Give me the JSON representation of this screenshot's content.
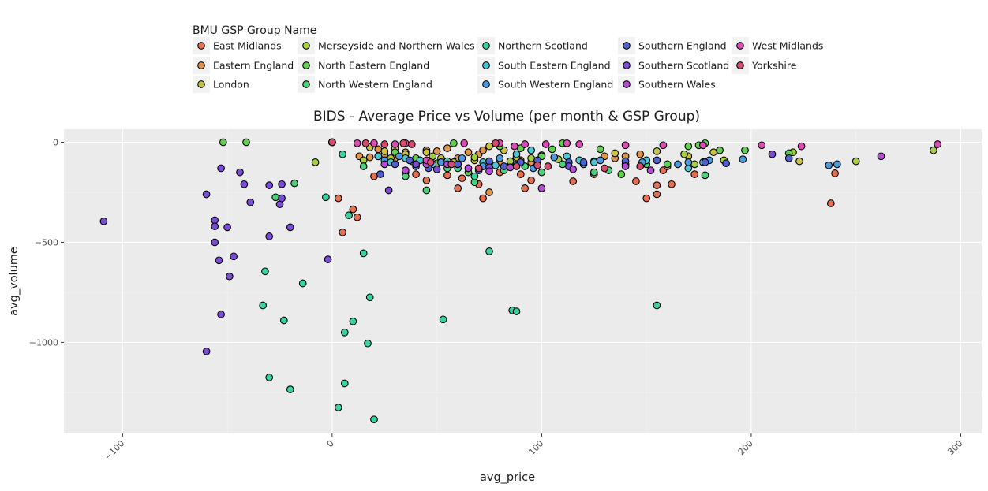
{
  "chart_data": {
    "type": "scatter",
    "title": "BIDS - Average Price vs Volume (per month & GSP Group)",
    "xlabel": "avg_price",
    "ylabel": "avg_volume",
    "xlim": [
      -128,
      310
    ],
    "ylim": [
      -1455,
      65
    ],
    "x_ticks": [
      -100,
      0,
      100,
      200,
      300
    ],
    "x_tick_labels": [
      "−100",
      "0",
      "100",
      "200",
      "300"
    ],
    "y_ticks": [
      0,
      -500,
      -1000
    ],
    "y_tick_labels": [
      "0",
      "−500",
      "−1000"
    ],
    "grid": true,
    "legend": {
      "title": "BMU GSP Group Name",
      "placement": "top"
    },
    "series": [
      {
        "name": "East Midlands",
        "color": "#E76F51",
        "points": [
          [
            3,
            -280
          ],
          [
            5,
            -450
          ],
          [
            10,
            -335
          ],
          [
            12,
            -375
          ],
          [
            20,
            -170
          ],
          [
            35,
            -150
          ],
          [
            40,
            -160
          ],
          [
            45,
            -190
          ],
          [
            55,
            -165
          ],
          [
            60,
            -230
          ],
          [
            62,
            -180
          ],
          [
            70,
            -210
          ],
          [
            72,
            -280
          ],
          [
            80,
            -150
          ],
          [
            90,
            -160
          ],
          [
            92,
            -230
          ],
          [
            95,
            -190
          ],
          [
            115,
            -195
          ],
          [
            125,
            -160
          ],
          [
            145,
            -195
          ],
          [
            150,
            -280
          ],
          [
            155,
            -260
          ],
          [
            155,
            -215
          ],
          [
            158,
            -140
          ],
          [
            162,
            -210
          ],
          [
            173,
            -160
          ],
          [
            240,
            -155
          ],
          [
            238,
            -305
          ]
        ]
      },
      {
        "name": "Eastern England",
        "color": "#E0954B",
        "points": [
          [
            13,
            -70
          ],
          [
            18,
            -75
          ],
          [
            22,
            -35
          ],
          [
            25,
            -60
          ],
          [
            30,
            -80
          ],
          [
            35,
            -50
          ],
          [
            40,
            -110
          ],
          [
            45,
            -40
          ],
          [
            50,
            -45
          ],
          [
            55,
            -30
          ],
          [
            60,
            -80
          ],
          [
            65,
            -50
          ],
          [
            70,
            -60
          ],
          [
            72,
            -40
          ],
          [
            75,
            -250
          ],
          [
            80,
            -100
          ],
          [
            85,
            -120
          ],
          [
            90,
            -90
          ],
          [
            95,
            -100
          ],
          [
            130,
            -70
          ],
          [
            135,
            -80
          ],
          [
            140,
            -70
          ],
          [
            147,
            -60
          ],
          [
            160,
            -120
          ]
        ]
      },
      {
        "name": "London",
        "color": "#C9C342",
        "points": [
          [
            18,
            -25
          ],
          [
            25,
            -45
          ],
          [
            30,
            -30
          ],
          [
            35,
            -60
          ],
          [
            45,
            -50
          ],
          [
            52,
            -80
          ],
          [
            60,
            -95
          ],
          [
            68,
            -90
          ],
          [
            75,
            -20
          ],
          [
            82,
            -40
          ],
          [
            88,
            -75
          ],
          [
            98,
            -110
          ],
          [
            135,
            -55
          ],
          [
            155,
            -45
          ],
          [
            170,
            -70
          ],
          [
            182,
            -50
          ],
          [
            223,
            -95
          ]
        ]
      },
      {
        "name": "Merseyside and Northern Wales",
        "color": "#A6CF3F",
        "points": [
          [
            -8,
            -100
          ],
          [
            15,
            -90
          ],
          [
            28,
            -80
          ],
          [
            38,
            -95
          ],
          [
            48,
            -70
          ],
          [
            58,
            -100
          ],
          [
            68,
            -75
          ],
          [
            85,
            -95
          ],
          [
            95,
            -80
          ],
          [
            100,
            -65
          ],
          [
            108,
            -85
          ],
          [
            125,
            -95
          ],
          [
            140,
            -110
          ],
          [
            168,
            -60
          ],
          [
            173,
            -110
          ],
          [
            187,
            -90
          ],
          [
            220,
            -50
          ],
          [
            250,
            -95
          ],
          [
            287,
            -40
          ]
        ]
      },
      {
        "name": "North Eastern England",
        "color": "#61D04F",
        "points": [
          [
            -52,
            0
          ],
          [
            -41,
            0
          ],
          [
            22,
            -70
          ],
          [
            30,
            -50
          ],
          [
            40,
            -80
          ],
          [
            50,
            -105
          ],
          [
            58,
            -5
          ],
          [
            65,
            -150
          ],
          [
            72,
            -120
          ],
          [
            80,
            -20
          ],
          [
            90,
            -30
          ],
          [
            100,
            -70
          ],
          [
            105,
            -35
          ],
          [
            110,
            -5
          ],
          [
            128,
            -35
          ],
          [
            138,
            -160
          ],
          [
            160,
            -110
          ],
          [
            170,
            -20
          ],
          [
            175,
            -15
          ],
          [
            178,
            -5
          ],
          [
            185,
            -40
          ],
          [
            197,
            -40
          ],
          [
            218,
            -55
          ]
        ]
      },
      {
        "name": "North Western England",
        "color": "#4BD07A",
        "points": [
          [
            -27,
            -275
          ],
          [
            -18,
            -205
          ],
          [
            15,
            -120
          ],
          [
            35,
            -170
          ],
          [
            45,
            -240
          ],
          [
            55,
            -130
          ],
          [
            68,
            -200
          ],
          [
            82,
            -140
          ],
          [
            92,
            -120
          ],
          [
            100,
            -150
          ],
          [
            110,
            -110
          ],
          [
            125,
            -150
          ],
          [
            132,
            -140
          ],
          [
            150,
            -110
          ],
          [
            178,
            -165
          ]
        ]
      },
      {
        "name": "Northern Scotland",
        "color": "#39D49C",
        "points": [
          [
            -32,
            -645
          ],
          [
            -33,
            -815
          ],
          [
            -30,
            -1175
          ],
          [
            -23,
            -890
          ],
          [
            -20,
            -1235
          ],
          [
            -14,
            -705
          ],
          [
            -3,
            -275
          ],
          [
            3,
            -1325
          ],
          [
            5,
            -60
          ],
          [
            6,
            -950
          ],
          [
            6,
            -1205
          ],
          [
            8,
            -365
          ],
          [
            10,
            -895
          ],
          [
            15,
            -555
          ],
          [
            17,
            -1005
          ],
          [
            18,
            -775
          ],
          [
            20,
            -1385
          ],
          [
            53,
            -885
          ],
          [
            75,
            -545
          ],
          [
            86,
            -840
          ],
          [
            88,
            -845
          ],
          [
            155,
            -815
          ],
          [
            60,
            -130
          ],
          [
            68,
            -170
          ]
        ]
      },
      {
        "name": "South Eastern England",
        "color": "#4CC8D4",
        "points": [
          [
            22,
            -70
          ],
          [
            28,
            -100
          ],
          [
            35,
            -80
          ],
          [
            42,
            -90
          ],
          [
            48,
            -110
          ],
          [
            55,
            -95
          ],
          [
            65,
            -130
          ],
          [
            72,
            -100
          ],
          [
            78,
            -115
          ],
          [
            88,
            -60
          ],
          [
            95,
            -40
          ],
          [
            112,
            -70
          ],
          [
            118,
            -90
          ],
          [
            125,
            -100
          ],
          [
            150,
            -90
          ],
          [
            170,
            -130
          ],
          [
            177,
            -100
          ]
        ]
      },
      {
        "name": "South Western England",
        "color": "#4C9BE0",
        "points": [
          [
            25,
            -90
          ],
          [
            32,
            -70
          ],
          [
            40,
            -120
          ],
          [
            52,
            -100
          ],
          [
            62,
            -80
          ],
          [
            72,
            -120
          ],
          [
            80,
            -80
          ],
          [
            88,
            -110
          ],
          [
            96,
            -130
          ],
          [
            106,
            -75
          ],
          [
            120,
            -110
          ],
          [
            128,
            -90
          ],
          [
            148,
            -100
          ],
          [
            165,
            -110
          ],
          [
            170,
            -100
          ],
          [
            180,
            -90
          ],
          [
            196,
            -85
          ],
          [
            237,
            -115
          ],
          [
            241,
            -110
          ]
        ]
      },
      {
        "name": "Southern England",
        "color": "#5060D0",
        "points": [
          [
            23,
            -160
          ],
          [
            30,
            -110
          ],
          [
            37,
            -90
          ],
          [
            46,
            -130
          ],
          [
            60,
            -110
          ],
          [
            70,
            -140
          ],
          [
            75,
            -95
          ],
          [
            82,
            -120
          ],
          [
            90,
            -100
          ],
          [
            98,
            -90
          ],
          [
            113,
            -100
          ],
          [
            120,
            -100
          ],
          [
            140,
            -95
          ],
          [
            155,
            -90
          ],
          [
            178,
            -100
          ],
          [
            188,
            -105
          ],
          [
            218,
            -80
          ]
        ]
      },
      {
        "name": "Southern Scotland",
        "color": "#7B4CD6",
        "points": [
          [
            -109,
            -395
          ],
          [
            -60,
            -260
          ],
          [
            -56,
            -390
          ],
          [
            -56,
            -420
          ],
          [
            -56,
            -500
          ],
          [
            -54,
            -590
          ],
          [
            -53,
            -130
          ],
          [
            -50,
            -425
          ],
          [
            -49,
            -670
          ],
          [
            -47,
            -570
          ],
          [
            -44,
            -150
          ],
          [
            -42,
            -210
          ],
          [
            -39,
            -300
          ],
          [
            -30,
            -215
          ],
          [
            -30,
            -470
          ],
          [
            -25,
            -310
          ],
          [
            -24,
            -210
          ],
          [
            -24,
            -280
          ],
          [
            -20,
            -425
          ],
          [
            -2,
            -585
          ],
          [
            -53,
            -860
          ],
          [
            -60,
            -1045
          ],
          [
            27,
            -240
          ],
          [
            40,
            -110
          ],
          [
            50,
            -135
          ],
          [
            75,
            -125
          ],
          [
            85,
            -125
          ],
          [
            113,
            -120
          ],
          [
            210,
            -60
          ]
        ]
      },
      {
        "name": "Southern Wales",
        "color": "#B64CD6",
        "points": [
          [
            25,
            -110
          ],
          [
            35,
            -140
          ],
          [
            45,
            -110
          ],
          [
            55,
            -110
          ],
          [
            65,
            -130
          ],
          [
            75,
            -145
          ],
          [
            85,
            -125
          ],
          [
            100,
            -230
          ],
          [
            115,
            -135
          ],
          [
            140,
            -120
          ],
          [
            152,
            -140
          ],
          [
            262,
            -70
          ]
        ]
      },
      {
        "name": "West Midlands",
        "color": "#DB4CB5",
        "points": [
          [
            0,
            0
          ],
          [
            0,
            0
          ],
          [
            0,
            0
          ],
          [
            12,
            -5
          ],
          [
            20,
            -5
          ],
          [
            30,
            -10
          ],
          [
            35,
            -5
          ],
          [
            45,
            -90
          ],
          [
            63,
            -5
          ],
          [
            80,
            -5
          ],
          [
            87,
            -20
          ],
          [
            92,
            -10
          ],
          [
            102,
            -10
          ],
          [
            112,
            -5
          ],
          [
            118,
            -10
          ],
          [
            140,
            -15
          ],
          [
            158,
            -15
          ],
          [
            177,
            -15
          ],
          [
            205,
            -15
          ],
          [
            224,
            -20
          ],
          [
            289,
            -10
          ]
        ]
      },
      {
        "name": "Yorkshire",
        "color": "#D64C6E",
        "points": [
          [
            0,
            0
          ],
          [
            0,
            0
          ],
          [
            0,
            0
          ],
          [
            16,
            -5
          ],
          [
            25,
            -10
          ],
          [
            34,
            -5
          ],
          [
            38,
            -10
          ],
          [
            47,
            -100
          ],
          [
            57,
            -110
          ],
          [
            70,
            -130
          ],
          [
            78,
            -5
          ],
          [
            88,
            -120
          ],
          [
            98,
            -115
          ],
          [
            103,
            -120
          ],
          [
            130,
            -130
          ],
          [
            147,
            -120
          ]
        ]
      }
    ]
  }
}
